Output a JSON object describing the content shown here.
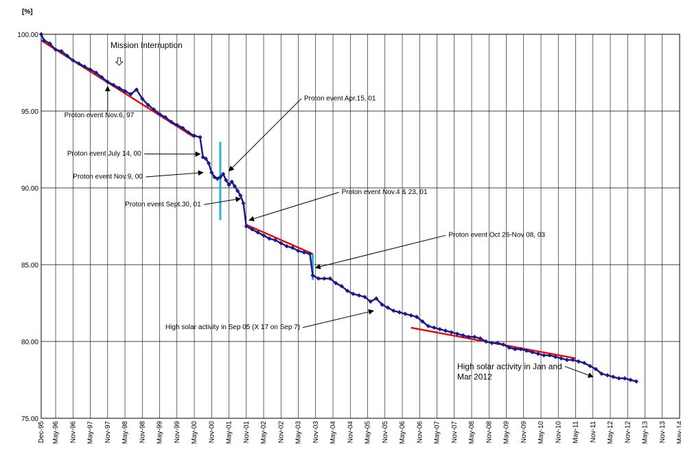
{
  "chart_data": {
    "type": "line",
    "title": "",
    "ylabel": "[%]",
    "xlabel": "",
    "ylim": [
      75,
      100
    ],
    "xlim": [
      "1995-12",
      "2014-05"
    ],
    "grid": true,
    "y_ticks": [
      "75.00",
      "80.00",
      "85.00",
      "90.00",
      "95.00",
      "100.00"
    ],
    "x_ticks": [
      "Dec-95",
      "May-96",
      "Nov-96",
      "May-97",
      "Nov-97",
      "May-98",
      "Nov-98",
      "May-99",
      "Nov-99",
      "May-00",
      "Nov-00",
      "May-01",
      "Nov-01",
      "May-02",
      "Nov-02",
      "May-03",
      "Nov-03",
      "May-04",
      "Nov-04",
      "May-05",
      "Nov-05",
      "May-06",
      "Nov-06",
      "May-07",
      "Nov-07",
      "May-08",
      "Nov-08",
      "May-09",
      "Nov-09",
      "May-10",
      "Nov-10",
      "May-11",
      "Nov-11",
      "May-12",
      "Nov-12",
      "May-13",
      "Nov-13",
      "May-14"
    ],
    "colors": {
      "series": "#1a1a8c",
      "trend": "#e01010",
      "jump": "#2bb0e0",
      "grid": "#000000"
    },
    "series": [
      {
        "values": [
          [
            "1995-12",
            100.0
          ],
          [
            "1996-01",
            99.6
          ],
          [
            "1996-03",
            99.4
          ],
          [
            "1996-05",
            99.0
          ],
          [
            "1996-07",
            98.9
          ],
          [
            "1996-09",
            98.6
          ],
          [
            "1996-11",
            98.3
          ],
          [
            "1997-01",
            98.1
          ],
          [
            "1997-03",
            97.9
          ],
          [
            "1997-05",
            97.7
          ],
          [
            "1997-07",
            97.5
          ],
          [
            "1997-09",
            97.2
          ],
          [
            "1997-11",
            96.9
          ],
          [
            "1998-01",
            96.7
          ],
          [
            "1998-03",
            96.5
          ],
          [
            "1998-05",
            96.3
          ],
          [
            "1998-07",
            96.1
          ],
          [
            "1998-09",
            96.4
          ],
          [
            "1998-11",
            95.8
          ],
          [
            "1999-01",
            95.4
          ],
          [
            "1999-03",
            95.1
          ],
          [
            "1999-05",
            94.8
          ],
          [
            "1999-07",
            94.6
          ],
          [
            "1999-09",
            94.3
          ],
          [
            "1999-11",
            94.1
          ],
          [
            "2000-01",
            93.9
          ],
          [
            "2000-03",
            93.6
          ],
          [
            "2000-05",
            93.4
          ],
          [
            "2000-07",
            93.3
          ],
          [
            "2000-08",
            92.0
          ],
          [
            "2000-09",
            91.9
          ],
          [
            "2000-10",
            91.6
          ],
          [
            "2000-11",
            91.0
          ],
          [
            "2000-12",
            90.7
          ],
          [
            "2001-01",
            90.6
          ],
          [
            "2001-02",
            90.7
          ],
          [
            "2001-03",
            90.9
          ],
          [
            "2001-04",
            90.5
          ],
          [
            "2001-05",
            90.2
          ],
          [
            "2001-06",
            90.4
          ],
          [
            "2001-07",
            90.1
          ],
          [
            "2001-08",
            89.8
          ],
          [
            "2001-09",
            89.5
          ],
          [
            "2001-10",
            89.0
          ],
          [
            "2001-11",
            87.5
          ],
          [
            "2002-01",
            87.3
          ],
          [
            "2002-03",
            87.1
          ],
          [
            "2002-05",
            86.9
          ],
          [
            "2002-07",
            86.7
          ],
          [
            "2002-09",
            86.6
          ],
          [
            "2002-11",
            86.4
          ],
          [
            "2003-01",
            86.2
          ],
          [
            "2003-03",
            86.1
          ],
          [
            "2003-05",
            85.9
          ],
          [
            "2003-07",
            85.8
          ],
          [
            "2003-09",
            85.7
          ],
          [
            "2003-10",
            84.3
          ],
          [
            "2003-12",
            84.1
          ],
          [
            "2004-02",
            84.1
          ],
          [
            "2004-04",
            84.1
          ],
          [
            "2004-06",
            83.8
          ],
          [
            "2004-08",
            83.6
          ],
          [
            "2004-10",
            83.3
          ],
          [
            "2004-12",
            83.1
          ],
          [
            "2005-02",
            83.0
          ],
          [
            "2005-04",
            82.9
          ],
          [
            "2005-06",
            82.6
          ],
          [
            "2005-08",
            82.8
          ],
          [
            "2005-10",
            82.4
          ],
          [
            "2005-12",
            82.2
          ],
          [
            "2006-02",
            82.0
          ],
          [
            "2006-04",
            81.9
          ],
          [
            "2006-06",
            81.8
          ],
          [
            "2006-08",
            81.7
          ],
          [
            "2006-10",
            81.6
          ],
          [
            "2006-12",
            81.3
          ],
          [
            "2007-02",
            81.0
          ],
          [
            "2007-04",
            80.9
          ],
          [
            "2007-06",
            80.8
          ],
          [
            "2007-08",
            80.7
          ],
          [
            "2007-10",
            80.6
          ],
          [
            "2007-12",
            80.5
          ],
          [
            "2008-02",
            80.4
          ],
          [
            "2008-04",
            80.3
          ],
          [
            "2008-06",
            80.3
          ],
          [
            "2008-08",
            80.2
          ],
          [
            "2008-10",
            80.0
          ],
          [
            "2008-12",
            79.9
          ],
          [
            "2009-02",
            79.9
          ],
          [
            "2009-04",
            79.8
          ],
          [
            "2009-06",
            79.6
          ],
          [
            "2009-08",
            79.5
          ],
          [
            "2009-10",
            79.5
          ],
          [
            "2009-12",
            79.4
          ],
          [
            "2010-02",
            79.3
          ],
          [
            "2010-04",
            79.2
          ],
          [
            "2010-06",
            79.1
          ],
          [
            "2010-08",
            79.1
          ],
          [
            "2010-10",
            79.0
          ],
          [
            "2010-12",
            78.9
          ],
          [
            "2011-02",
            78.8
          ],
          [
            "2011-04",
            78.8
          ],
          [
            "2011-06",
            78.7
          ],
          [
            "2011-08",
            78.6
          ],
          [
            "2011-10",
            78.4
          ],
          [
            "2011-12",
            78.2
          ],
          [
            "2012-02",
            77.9
          ],
          [
            "2012-04",
            77.8
          ],
          [
            "2012-06",
            77.7
          ],
          [
            "2012-08",
            77.6
          ],
          [
            "2012-10",
            77.6
          ],
          [
            "2012-12",
            77.5
          ],
          [
            "2013-02",
            77.4
          ]
        ]
      }
    ],
    "trend_lines": [
      {
        "from": [
          "1995-12",
          99.6
        ],
        "to": [
          "2000-05",
          93.3
        ]
      },
      {
        "from": [
          "2001-11",
          87.6
        ],
        "to": [
          "2003-10",
          85.7
        ]
      },
      {
        "from": [
          "2006-08",
          80.9
        ],
        "to": [
          "2011-05",
          78.9
        ]
      }
    ],
    "jump_markers": [
      {
        "x": "2001-02",
        "y1": 87.9,
        "y2": 93.0
      },
      {
        "x": "2003-10",
        "y1": 84.0,
        "y2": 85.7
      }
    ],
    "annotations": [
      {
        "text": "Mission Interruption",
        "at": [
          "1997-12",
          99.1
        ],
        "arrow": "down-hollow",
        "to": [
          "1998-03",
          97.3
        ]
      },
      {
        "text": "Proton event Nov.6, 97",
        "at": [
          "1996-08",
          94.6
        ],
        "to": [
          "1997-11",
          96.6
        ]
      },
      {
        "text": "Proton event  July 14, 00",
        "at": [
          "1996-09",
          92.1
        ],
        "to": [
          "2000-07",
          92.2
        ]
      },
      {
        "text": "Proton event Nov.9,  00",
        "at": [
          "1996-11",
          90.6
        ],
        "to": [
          "2000-08",
          91.0
        ]
      },
      {
        "text": "Proton event Sept.30, 01",
        "at": [
          "1998-05",
          88.8
        ],
        "to": [
          "2001-09",
          89.3
        ]
      },
      {
        "text": "Proton event Apr.15, 01",
        "at": [
          "2003-07",
          95.7
        ],
        "to": [
          "2001-05",
          91.1
        ]
      },
      {
        "text": "Proton event Nov.4 & 23, 01",
        "at": [
          "2004-08",
          89.6
        ],
        "to": [
          "2001-12",
          87.9
        ]
      },
      {
        "text": "Proton event Oct 26-Nov 08, 03",
        "at": [
          "2007-09",
          86.8
        ],
        "to": [
          "2003-11",
          84.8
        ]
      },
      {
        "text": "High solar activity in Sep 05 (X 17 on Sep 7)",
        "at": [
          "1999-07",
          80.8
        ],
        "to": [
          "2005-07",
          82.0
        ]
      },
      {
        "text": "High solar activity in Jan and",
        "text2": "Mar 2012",
        "at": [
          "2007-12",
          78.2
        ],
        "to": [
          "2011-11",
          77.7
        ]
      }
    ]
  }
}
